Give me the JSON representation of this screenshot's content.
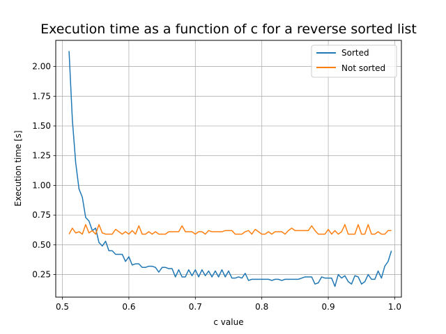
{
  "chart_data": {
    "type": "line",
    "title": "Execution time as a function of c for a reverse sorted list",
    "xlabel": "c value",
    "ylabel": "Execution time [s]",
    "xlim": [
      0.49,
      1.01
    ],
    "ylim": [
      0.06,
      2.22
    ],
    "xticks": [
      0.5,
      0.6,
      0.7,
      0.8,
      0.9,
      1.0
    ],
    "xtick_labels": [
      "0.5",
      "0.6",
      "0.7",
      "0.8",
      "0.9",
      "1.0"
    ],
    "yticks": [
      0.25,
      0.5,
      0.75,
      1.0,
      1.25,
      1.5,
      1.75,
      2.0
    ],
    "ytick_labels": [
      "0.25",
      "0.50",
      "0.75",
      "1.00",
      "1.25",
      "1.50",
      "1.75",
      "2.00"
    ],
    "grid": true,
    "legend_position": "upper right",
    "x": [
      0.51,
      0.515,
      0.52,
      0.525,
      0.53,
      0.535,
      0.54,
      0.545,
      0.55,
      0.555,
      0.56,
      0.565,
      0.57,
      0.575,
      0.58,
      0.585,
      0.59,
      0.595,
      0.6,
      0.605,
      0.61,
      0.615,
      0.62,
      0.625,
      0.63,
      0.635,
      0.64,
      0.645,
      0.65,
      0.655,
      0.66,
      0.665,
      0.67,
      0.675,
      0.68,
      0.685,
      0.69,
      0.695,
      0.7,
      0.705,
      0.71,
      0.715,
      0.72,
      0.725,
      0.73,
      0.735,
      0.74,
      0.745,
      0.75,
      0.755,
      0.76,
      0.765,
      0.77,
      0.775,
      0.78,
      0.785,
      0.79,
      0.795,
      0.8,
      0.805,
      0.81,
      0.815,
      0.82,
      0.825,
      0.83,
      0.835,
      0.84,
      0.845,
      0.85,
      0.855,
      0.86,
      0.865,
      0.87,
      0.875,
      0.88,
      0.885,
      0.89,
      0.895,
      0.9,
      0.905,
      0.91,
      0.915,
      0.92,
      0.925,
      0.93,
      0.935,
      0.94,
      0.945,
      0.95,
      0.955,
      0.96,
      0.965,
      0.97,
      0.975,
      0.98,
      0.985,
      0.99,
      0.995
    ],
    "series": [
      {
        "name": "Sorted",
        "color": "#1f77b4",
        "values": [
          2.13,
          1.55,
          1.19,
          0.97,
          0.9,
          0.73,
          0.7,
          0.62,
          0.64,
          0.52,
          0.49,
          0.53,
          0.45,
          0.45,
          0.42,
          0.42,
          0.42,
          0.36,
          0.4,
          0.33,
          0.34,
          0.34,
          0.31,
          0.31,
          0.32,
          0.32,
          0.31,
          0.27,
          0.31,
          0.31,
          0.3,
          0.3,
          0.23,
          0.29,
          0.23,
          0.23,
          0.29,
          0.24,
          0.29,
          0.23,
          0.29,
          0.24,
          0.28,
          0.23,
          0.28,
          0.23,
          0.29,
          0.23,
          0.28,
          0.22,
          0.22,
          0.23,
          0.22,
          0.26,
          0.2,
          0.21,
          0.21,
          0.21,
          0.21,
          0.21,
          0.21,
          0.2,
          0.21,
          0.21,
          0.2,
          0.21,
          0.21,
          0.21,
          0.21,
          0.21,
          0.22,
          0.23,
          0.23,
          0.23,
          0.17,
          0.18,
          0.23,
          0.22,
          0.22,
          0.22,
          0.15,
          0.25,
          0.22,
          0.24,
          0.19,
          0.17,
          0.24,
          0.23,
          0.17,
          0.19,
          0.25,
          0.21,
          0.21,
          0.28,
          0.22,
          0.32,
          0.36,
          0.45
        ]
      },
      {
        "name": "Not sorted",
        "color": "#ff7f0e",
        "values": [
          0.59,
          0.64,
          0.6,
          0.61,
          0.59,
          0.67,
          0.6,
          0.62,
          0.59,
          0.67,
          0.6,
          0.59,
          0.59,
          0.59,
          0.63,
          0.61,
          0.59,
          0.61,
          0.59,
          0.62,
          0.59,
          0.66,
          0.59,
          0.59,
          0.61,
          0.59,
          0.61,
          0.59,
          0.59,
          0.59,
          0.61,
          0.61,
          0.61,
          0.61,
          0.66,
          0.61,
          0.61,
          0.61,
          0.59,
          0.61,
          0.61,
          0.59,
          0.62,
          0.61,
          0.61,
          0.61,
          0.61,
          0.62,
          0.62,
          0.62,
          0.59,
          0.59,
          0.59,
          0.61,
          0.62,
          0.59,
          0.63,
          0.61,
          0.59,
          0.59,
          0.61,
          0.59,
          0.61,
          0.61,
          0.61,
          0.59,
          0.62,
          0.64,
          0.62,
          0.62,
          0.62,
          0.62,
          0.62,
          0.66,
          0.62,
          0.59,
          0.59,
          0.59,
          0.63,
          0.59,
          0.62,
          0.59,
          0.61,
          0.67,
          0.59,
          0.59,
          0.59,
          0.67,
          0.59,
          0.59,
          0.67,
          0.59,
          0.59,
          0.61,
          0.59,
          0.59,
          0.62,
          0.62
        ]
      }
    ]
  }
}
